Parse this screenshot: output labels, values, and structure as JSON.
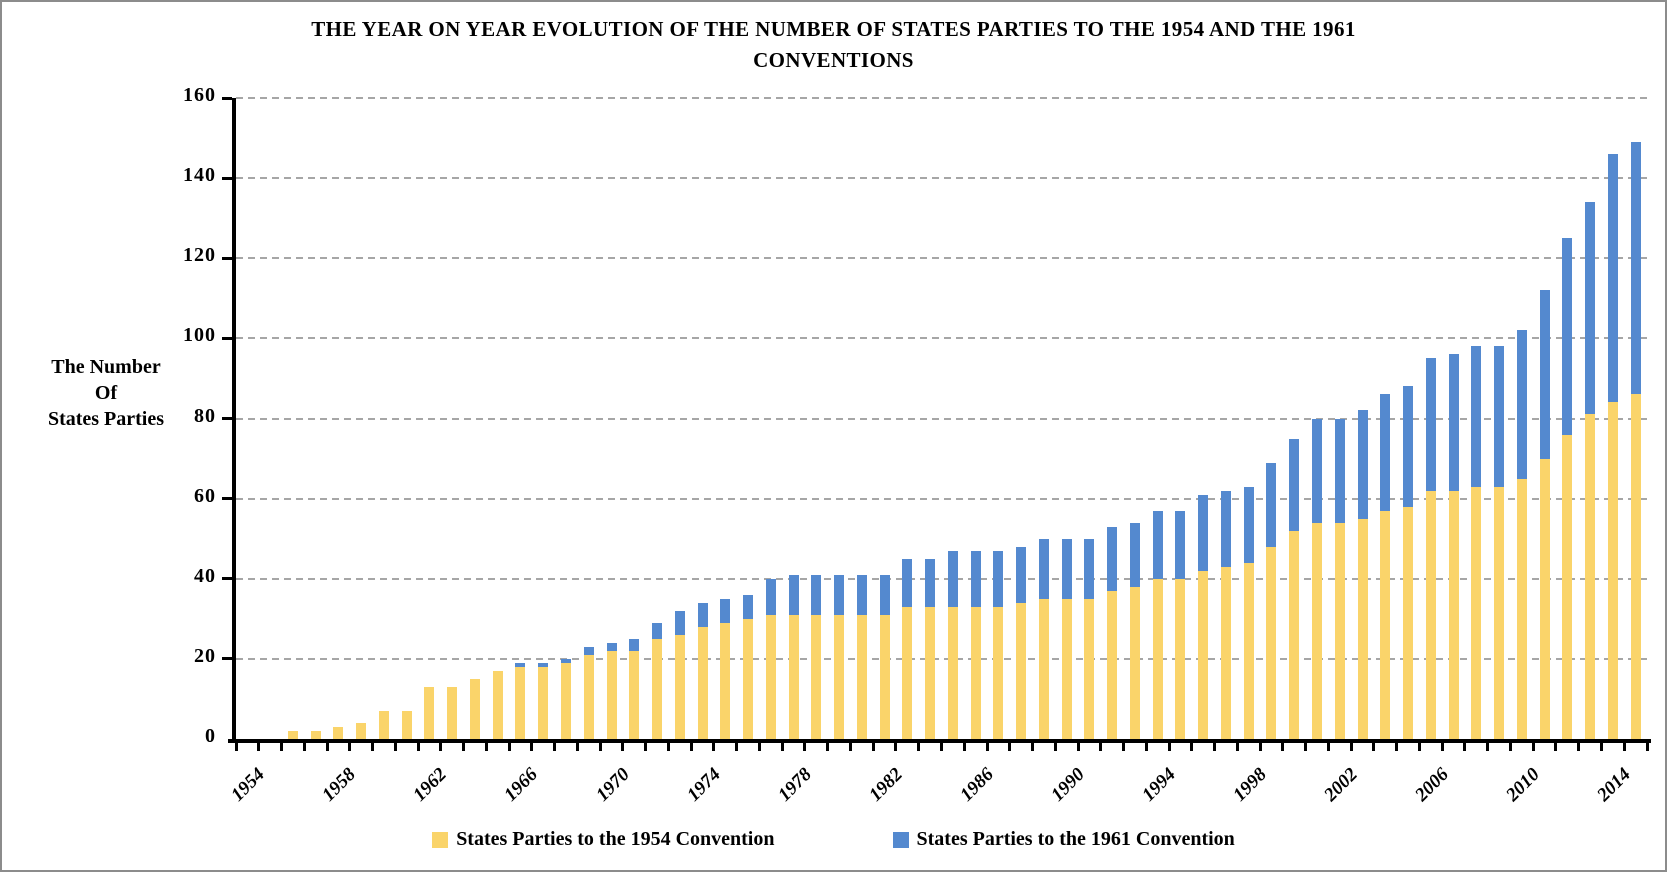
{
  "page": {
    "background_color": "#ffffff",
    "border_color": "#8c8c8c"
  },
  "chart_data": {
    "type": "bar",
    "stacked": true,
    "title_lines": [
      "THE YEAR ON YEAR EVOLUTION OF THE NUMBER OF STATES PARTIES TO THE 1954 AND THE 1961",
      "CONVENTIONS"
    ],
    "y_axis_title_lines": [
      "The Number",
      "Of",
      "States Parties"
    ],
    "y_axis": {
      "min": 0,
      "max": 160,
      "step": 20
    },
    "grid": true,
    "legend_position": "bottom",
    "axis_color": "#000000",
    "gridline_color": "#a6a6a6",
    "years": [
      1954,
      1955,
      1956,
      1957,
      1958,
      1959,
      1960,
      1961,
      1962,
      1963,
      1964,
      1965,
      1966,
      1967,
      1968,
      1969,
      1970,
      1971,
      1972,
      1973,
      1974,
      1975,
      1976,
      1977,
      1978,
      1979,
      1980,
      1981,
      1982,
      1983,
      1984,
      1985,
      1986,
      1987,
      1988,
      1989,
      1990,
      1991,
      1992,
      1993,
      1994,
      1995,
      1996,
      1997,
      1998,
      1999,
      2000,
      2001,
      2002,
      2003,
      2004,
      2005,
      2006,
      2007,
      2008,
      2009,
      2010,
      2011,
      2012,
      2013,
      2014,
      2015
    ],
    "x_tick_label_years": [
      1954,
      1958,
      1962,
      1966,
      1970,
      1974,
      1978,
      1982,
      1986,
      1990,
      1994,
      1998,
      2002,
      2006,
      2010,
      2014
    ],
    "series": [
      {
        "name": "States Parties to the 1954 Convention",
        "color": "#FAD46A",
        "values": [
          0,
          0,
          2,
          2,
          3,
          4,
          7,
          7,
          13,
          13,
          15,
          17,
          18,
          18,
          19,
          21,
          22,
          22,
          25,
          26,
          28,
          29,
          30,
          31,
          31,
          31,
          31,
          31,
          31,
          33,
          33,
          33,
          33,
          33,
          34,
          35,
          35,
          35,
          37,
          38,
          40,
          40,
          42,
          43,
          44,
          48,
          52,
          54,
          54,
          55,
          57,
          58,
          62,
          62,
          63,
          63,
          65,
          70,
          76,
          81,
          84,
          86
        ]
      },
      {
        "name": "States Parties to the 1961 Convention",
        "color": "#5489CF",
        "values": [
          0,
          0,
          0,
          0,
          0,
          0,
          0,
          0,
          0,
          0,
          0,
          0,
          1,
          1,
          1,
          2,
          2,
          3,
          4,
          6,
          6,
          6,
          6,
          9,
          10,
          10,
          10,
          10,
          10,
          12,
          12,
          14,
          14,
          14,
          14,
          15,
          15,
          15,
          16,
          16,
          17,
          17,
          19,
          19,
          19,
          21,
          23,
          26,
          26,
          27,
          29,
          30,
          33,
          34,
          35,
          35,
          37,
          42,
          49,
          53,
          62,
          63
        ]
      }
    ]
  }
}
